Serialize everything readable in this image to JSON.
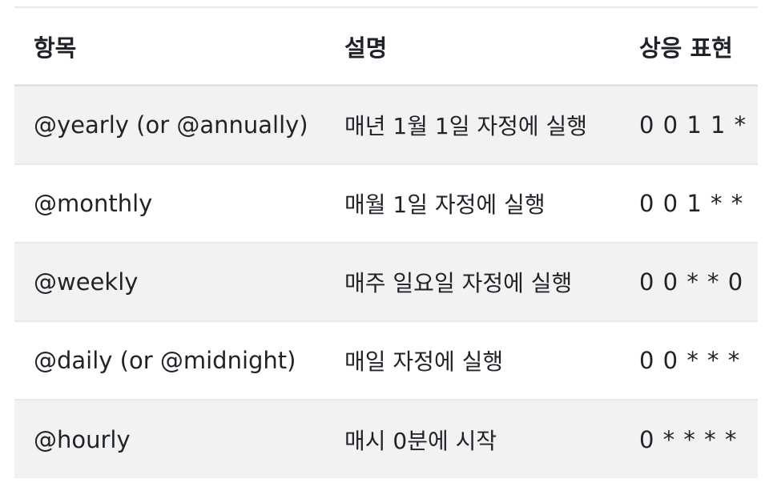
{
  "table": {
    "headers": {
      "item": "항목",
      "description": "설명",
      "equivalent": "상응 표현"
    },
    "rows": [
      {
        "item": "@yearly (or @annually)",
        "description": "매년 1월 1일 자정에 실행",
        "equivalent": "0 0 1 1 *"
      },
      {
        "item": "@monthly",
        "description": "매월 1일 자정에 실행",
        "equivalent": "0 0 1 * *"
      },
      {
        "item": "@weekly",
        "description": "매주 일요일 자정에 실행",
        "equivalent": "0 0 * * 0"
      },
      {
        "item": "@daily (or @midnight)",
        "description": "매일 자정에 실행",
        "equivalent": "0 0 * * *"
      },
      {
        "item": "@hourly",
        "description": "매시 0분에 시작",
        "equivalent": "0 * * * *"
      }
    ]
  },
  "colors": {
    "row_shade": "#f2f2f2",
    "rule": "#e6e8eb",
    "text": "#1f2328"
  }
}
